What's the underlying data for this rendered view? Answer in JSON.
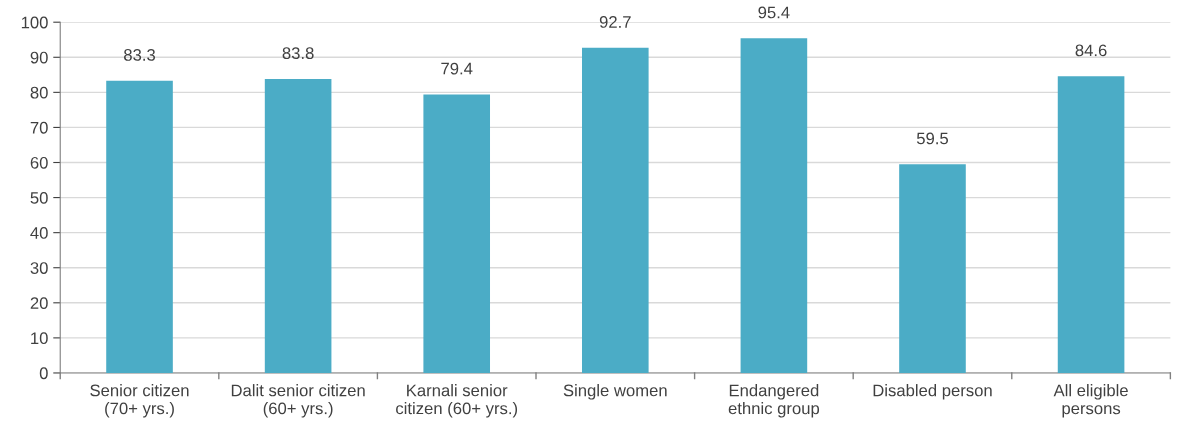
{
  "chart_data": {
    "type": "bar",
    "categories": [
      "Senior citizen\n(70+ yrs.)",
      "Dalit senior citizen\n(60+ yrs.)",
      "Karnali senior\ncitizen (60+ yrs.)",
      "Single women",
      "Endangered\nethnic group",
      "Disabled person",
      "All eligible\npersons"
    ],
    "values": [
      83.3,
      83.8,
      79.4,
      92.7,
      95.4,
      59.5,
      84.6
    ],
    "color": "#4bacc6",
    "ylim": [
      0,
      100
    ],
    "yticks": [
      0,
      10,
      20,
      30,
      40,
      50,
      60,
      70,
      80,
      90,
      100
    ],
    "grid": "y",
    "data_labels": true
  }
}
